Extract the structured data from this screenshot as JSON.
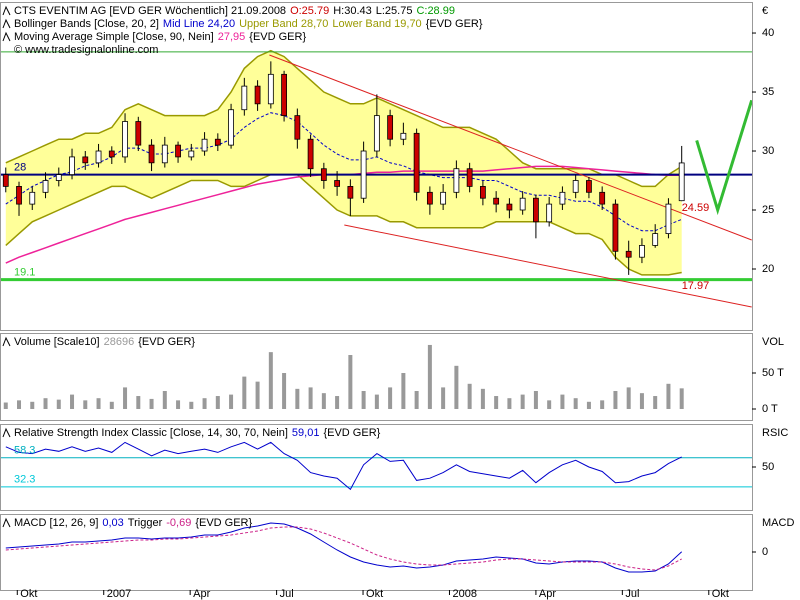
{
  "chart_data": [
    {
      "type": "candlestick",
      "title": "CTS EVENTIM AG [EVD GER  Wöchentlich] 21.09.2008",
      "ohlc_labels": [
        "O:25.79",
        "H:30.43",
        "L:25.75",
        "C:28.99"
      ],
      "ohlc_label_colors": [
        "#cc0000",
        "#000000",
        "#000000",
        "#009900"
      ],
      "credit": "© www.tradesignalonline.com",
      "axis_label": "€",
      "xlim": [
        -0.6,
        25.5
      ],
      "ylim": [
        14.83,
        42.63
      ],
      "yticks": [
        20,
        25,
        30,
        35,
        40
      ],
      "x": [
        -0.4,
        0.06,
        0.52,
        0.98,
        1.44,
        1.9,
        2.36,
        2.82,
        3.28,
        3.74,
        4.2,
        4.66,
        5.12,
        5.58,
        6.04,
        6.5,
        6.96,
        7.42,
        7.88,
        8.34,
        8.8,
        9.26,
        9.72,
        10.18,
        10.64,
        11.1,
        11.56,
        12.02,
        12.48,
        12.94,
        13.4,
        13.86,
        14.32,
        14.78,
        15.24,
        15.7,
        16.16,
        16.62,
        17.08,
        17.54,
        18,
        18.46,
        18.92,
        19.38,
        19.84,
        20.3,
        20.76,
        21.22,
        21.68,
        22.14,
        22.6,
        23.06
      ],
      "open": [
        28,
        27,
        25.5,
        26.5,
        27.5,
        28,
        29.5,
        29,
        30,
        29.5,
        32.5,
        30.5,
        29,
        30.5,
        29.5,
        30,
        31,
        30.5,
        33.5,
        35.5,
        34,
        36.5,
        33,
        31,
        28.5,
        27.5,
        27,
        26,
        30,
        33,
        31,
        31.5,
        26.5,
        25.5,
        26.5,
        28.5,
        27,
        26,
        25.5,
        25,
        26,
        24,
        25.5,
        26.5,
        27.5,
        26.5,
        25.5,
        21.5,
        21,
        22,
        23,
        25.79
      ],
      "high": [
        28.6,
        27.4,
        27,
        28.2,
        28.6,
        30.2,
        30,
        30.6,
        30.4,
        33.2,
        32.9,
        31,
        31.2,
        30.8,
        30.6,
        31.6,
        31.5,
        34,
        36.2,
        36,
        37.6,
        36.8,
        33.6,
        31.4,
        29,
        28.3,
        27.6,
        30.8,
        34.8,
        33.5,
        32.4,
        31.9,
        27,
        27.2,
        29.2,
        29,
        27.5,
        26.6,
        26,
        26.6,
        26.3,
        26.1,
        27,
        28,
        27.8,
        27,
        25.9,
        22.4,
        22.6,
        23.8,
        26,
        30.43
      ],
      "low": [
        26.5,
        24.5,
        25,
        26,
        27,
        27.6,
        28.4,
        28.6,
        28.9,
        29,
        30,
        28.3,
        28.6,
        29,
        29.2,
        29.6,
        30,
        30.2,
        33,
        33.4,
        33.6,
        32.5,
        30.2,
        27.8,
        26.8,
        26.2,
        24.5,
        25.6,
        29.5,
        30.4,
        30.5,
        25.8,
        24.6,
        25,
        26,
        26.5,
        25.4,
        24.8,
        24.3,
        24.6,
        22.6,
        23.6,
        25,
        26,
        26,
        25,
        20.8,
        19.5,
        20.5,
        21.8,
        22.6,
        25.75
      ],
      "close": [
        27,
        25.5,
        26.5,
        27.5,
        28,
        29.5,
        29,
        30,
        29.5,
        32.5,
        30.5,
        29,
        30.5,
        29.5,
        30,
        31,
        30.5,
        33.5,
        35.5,
        34,
        36.5,
        33,
        31,
        28.5,
        27.5,
        27,
        26,
        30,
        33,
        31,
        31.5,
        26.5,
        25.5,
        26.5,
        28.5,
        27,
        26,
        25.5,
        25,
        26,
        24,
        25.5,
        26.5,
        27.5,
        26.5,
        25.5,
        21.5,
        21,
        22,
        23,
        25.5,
        28.99
      ],
      "up_color": "#ffffff",
      "down_color": "#cc0000",
      "indicators": [
        {
          "label": "Bollinger Bands [Close, 20, 2]",
          "fill": "#ffff99",
          "suffix": "{EVD GER}",
          "series": [
            {
              "name": "Mid Line 24,20",
              "color": "#0000cc",
              "dash": true,
              "values": [
                25.5,
                26.25,
                27,
                27.5,
                28,
                28.25,
                28.75,
                29,
                29.5,
                30.25,
                30.25,
                29.75,
                29.75,
                30,
                30.25,
                30.25,
                30.5,
                31,
                32,
                32.75,
                33.25,
                33,
                32.5,
                31.5,
                30.5,
                29.75,
                29.25,
                29.25,
                29.5,
                29,
                28.75,
                28.25,
                28,
                27.75,
                27.75,
                27.75,
                27.5,
                27.5,
                27,
                26.5,
                26.25,
                26.25,
                26,
                25.75,
                25.75,
                25.25,
                24.5,
                23.75,
                23.25,
                23.25,
                23.75,
                24.2
              ]
            },
            {
              "name": "Upper Band 28,70",
              "color": "#999900",
              "values": [
                29,
                29.5,
                30,
                30.5,
                31,
                31,
                31.5,
                31.5,
                32,
                33.5,
                34,
                33.5,
                33,
                33,
                33,
                33,
                33.5,
                35,
                37,
                38,
                38.5,
                38,
                37,
                36,
                35,
                34.5,
                34,
                34,
                34.5,
                34,
                33.5,
                33,
                32.5,
                32,
                32,
                32,
                31.5,
                31,
                30,
                29,
                28.5,
                28.5,
                28.5,
                28.5,
                28.5,
                28,
                28,
                27.5,
                27,
                27,
                28,
                28.7
              ]
            },
            {
              "name": "Lower Band 19,70",
              "color": "#999900",
              "values": [
                22,
                23,
                24,
                24.5,
                25,
                25.5,
                26,
                26.5,
                27,
                27,
                26.5,
                26,
                26.5,
                27,
                27.5,
                27.5,
                27.5,
                27,
                27,
                27.5,
                28,
                28,
                28,
                27,
                26,
                25,
                24.5,
                24.5,
                24.5,
                24,
                24,
                23.5,
                23.5,
                23.5,
                23.5,
                23.5,
                23.5,
                24,
                24,
                24,
                24,
                24,
                23.5,
                23,
                23,
                22.5,
                21,
                20,
                19.5,
                19.5,
                19.5,
                19.7
              ]
            }
          ]
        },
        {
          "suffix": "{EVD GER}",
          "series": [
            {
              "name": "Moving Average Simple [Close, 90, Nein]",
              "value_text": "27,95",
              "color": "#ee2299",
              "values": [
                20.5,
                21,
                21.4,
                21.8,
                22.2,
                22.6,
                23,
                23.4,
                23.8,
                24.2,
                24.5,
                24.8,
                25.1,
                25.4,
                25.7,
                26,
                26.3,
                26.6,
                26.9,
                27.2,
                27.4,
                27.6,
                27.8,
                27.9,
                28,
                28,
                28,
                28.1,
                28.2,
                28.2,
                28.3,
                28.3,
                28.3,
                28.3,
                28.3,
                28.3,
                28.3,
                28.4,
                28.5,
                28.6,
                28.7,
                28.7,
                28.7,
                28.6,
                28.5,
                28.4,
                28.3,
                28.2,
                28.1,
                28,
                27.95,
                27.95
              ]
            }
          ]
        }
      ],
      "hlines": [
        {
          "value": 38.4,
          "color": "#33aa33",
          "line_width": 1
        },
        {
          "value": 28,
          "label": "28",
          "color": "#000080",
          "line_width": 2
        },
        {
          "value": 19.1,
          "label": "19.1",
          "color": "#33cc33",
          "line_width": 3
        }
      ],
      "drawings": [
        {
          "x": [
            8.75,
            25.49
          ],
          "y": [
            38.14,
            22.46
          ],
          "color": "#dd2222",
          "line_width": 1
        },
        {
          "x": [
            11.35,
            25.49
          ],
          "y": [
            23.73,
            16.78
          ],
          "color": "#dd2222",
          "line_width": 1
        },
        {
          "x": [
            23.58,
            24.31,
            25.49
          ],
          "y": [
            30.9,
            25,
            34.3
          ],
          "color": "#33bb33",
          "line_width": 3
        }
      ],
      "annotations": [
        {
          "x": 23.06,
          "value": 24.59,
          "label": "24.59",
          "color": "#cc0000"
        },
        {
          "x": 23.06,
          "value": 17.97,
          "label": "17.97",
          "color": "#cc0000"
        }
      ]
    },
    {
      "type": "bar",
      "axis_label": "VOL",
      "suffix": "{EVD GER}",
      "xlim": [
        -0.6,
        25.5
      ],
      "ylim": [
        -15.3,
        105.6
      ],
      "yticks": [
        {
          "value": 50,
          "label": "50 T"
        },
        {
          "value": 0,
          "label": "0 T"
        }
      ],
      "x": [
        -0.4,
        0.06,
        0.52,
        0.98,
        1.44,
        1.9,
        2.36,
        2.82,
        3.28,
        3.74,
        4.2,
        4.66,
        5.12,
        5.58,
        6.04,
        6.5,
        6.96,
        7.42,
        7.88,
        8.34,
        8.8,
        9.26,
        9.72,
        10.18,
        10.64,
        11.1,
        11.56,
        12.02,
        12.48,
        12.94,
        13.4,
        13.86,
        14.32,
        14.78,
        15.24,
        15.7,
        16.16,
        16.62,
        17.08,
        17.54,
        18,
        18.46,
        18.92,
        19.38,
        19.84,
        20.3,
        20.76,
        21.22,
        21.68,
        22.14,
        22.6,
        23.06
      ],
      "series": [
        {
          "name": "Volume [Scale10]",
          "value_text": "28696",
          "color": "#999999",
          "values": [
            9,
            12,
            10,
            15,
            13,
            20,
            12,
            15,
            10,
            30,
            18,
            14,
            25,
            12,
            10,
            15,
            18,
            20,
            45,
            38,
            79,
            50,
            28,
            30,
            22,
            18,
            75,
            25,
            20,
            30,
            50,
            25,
            89,
            30,
            60,
            35,
            28,
            18,
            15,
            20,
            25,
            12,
            20,
            15,
            10,
            12,
            25,
            30,
            22,
            18,
            35,
            28.7
          ]
        }
      ]
    },
    {
      "type": "line",
      "axis_label": "RSIC",
      "suffix": "{EVD GER}",
      "xlim": [
        -0.6,
        25.5
      ],
      "ylim": [
        11.6,
        88.4
      ],
      "yticks": [
        50
      ],
      "hlines": [
        {
          "value": 58.3,
          "label": "58.3",
          "color": "#00b0c0",
          "line_width": 1
        },
        {
          "value": 32.3,
          "label": "32.3",
          "color": "#00c8d8",
          "line_width": 1
        }
      ],
      "x": [
        -0.4,
        0.06,
        0.52,
        0.98,
        1.44,
        1.9,
        2.36,
        2.82,
        3.28,
        3.74,
        4.2,
        4.66,
        5.12,
        5.58,
        6.04,
        6.5,
        6.96,
        7.42,
        7.88,
        8.34,
        8.8,
        9.26,
        9.72,
        10.18,
        10.64,
        11.1,
        11.56,
        12.02,
        12.48,
        12.94,
        13.4,
        13.86,
        14.32,
        14.78,
        15.24,
        15.7,
        16.16,
        16.62,
        17.08,
        17.54,
        18,
        18.46,
        18.92,
        19.38,
        19.84,
        20.3,
        20.76,
        21.22,
        21.68,
        22.14,
        22.6,
        23.06
      ],
      "series": [
        {
          "name": "Relative Strength Index Classic [Close, 14, 30, 70, Nein]",
          "value_text": "59,01",
          "color": "#0000cc",
          "values": [
            68,
            63,
            62,
            66,
            64,
            68,
            64,
            67,
            63,
            72,
            66,
            60,
            65,
            62,
            64,
            66,
            63,
            68,
            72,
            66,
            72,
            62,
            56,
            45,
            42,
            40,
            30,
            52,
            62,
            55,
            56,
            38,
            40,
            45,
            52,
            46,
            44,
            42,
            40,
            47,
            36,
            45,
            52,
            56,
            50,
            46,
            36,
            37,
            42,
            45,
            53,
            59.01
          ]
        }
      ]
    },
    {
      "type": "line",
      "axis_label": "MACD",
      "suffix": "{EVD GER}",
      "xlim": [
        -0.6,
        25.5
      ],
      "ylim": [
        -3.8,
        3.8
      ],
      "yticks": [
        0
      ],
      "xticks": [
        {
          "value": 0,
          "label": "Okt"
        },
        {
          "value": 3,
          "label": "2007"
        },
        {
          "value": 6,
          "label": "Apr"
        },
        {
          "value": 9,
          "label": "Jul"
        },
        {
          "value": 12,
          "label": "Okt"
        },
        {
          "value": 15,
          "label": "2008"
        },
        {
          "value": 18,
          "label": "Apr"
        },
        {
          "value": 21,
          "label": "Jul"
        },
        {
          "value": 24,
          "label": "Okt"
        }
      ],
      "x": [
        -0.4,
        0.06,
        0.52,
        0.98,
        1.44,
        1.9,
        2.36,
        2.82,
        3.28,
        3.74,
        4.2,
        4.66,
        5.12,
        5.58,
        6.04,
        6.5,
        6.96,
        7.42,
        7.88,
        8.34,
        8.8,
        9.26,
        9.72,
        10.18,
        10.64,
        11.1,
        11.56,
        12.02,
        12.48,
        12.94,
        13.4,
        13.86,
        14.32,
        14.78,
        15.24,
        15.7,
        16.16,
        16.62,
        17.08,
        17.54,
        18,
        18.46,
        18.92,
        19.38,
        19.84,
        20.3,
        20.76,
        21.22,
        21.68,
        22.14,
        22.6,
        23.06
      ],
      "series": [
        {
          "name": "MACD [12, 26, 9]",
          "value_text": "0,03",
          "color": "#0000cc",
          "values": [
            0.4,
            0.5,
            0.6,
            0.7,
            0.8,
            1,
            1,
            1.1,
            1.2,
            1.4,
            1.4,
            1.3,
            1.4,
            1.4,
            1.5,
            1.7,
            1.7,
            2,
            2.4,
            2.6,
            2.9,
            2.8,
            2.4,
            1.8,
            1,
            0.2,
            -0.5,
            -1,
            -1.3,
            -1.5,
            -1.4,
            -1.6,
            -1.5,
            -1.3,
            -0.9,
            -0.8,
            -0.7,
            -0.5,
            -0.6,
            -0.7,
            -1.1,
            -1.2,
            -1,
            -0.9,
            -0.9,
            -1,
            -1.6,
            -2,
            -2,
            -1.9,
            -1.2,
            0.03
          ]
        },
        {
          "name": "Trigger",
          "value_text": "-0,69",
          "color": "#cc2288",
          "dash": true,
          "values": [
            0.2,
            0.3,
            0.4,
            0.5,
            0.6,
            0.7,
            0.8,
            0.9,
            1,
            1.1,
            1.2,
            1.2,
            1.3,
            1.3,
            1.4,
            1.5,
            1.6,
            1.7,
            1.9,
            2.1,
            2.4,
            2.5,
            2.5,
            2.3,
            1.9,
            1.4,
            0.9,
            0.3,
            -0.3,
            -0.7,
            -1,
            -1.2,
            -1.3,
            -1.3,
            -1.2,
            -1.1,
            -1,
            -0.8,
            -0.7,
            -0.7,
            -0.8,
            -0.9,
            -1,
            -1,
            -1,
            -1,
            -1.2,
            -1.5,
            -1.7,
            -1.8,
            -1.4,
            -0.69
          ]
        }
      ]
    }
  ]
}
